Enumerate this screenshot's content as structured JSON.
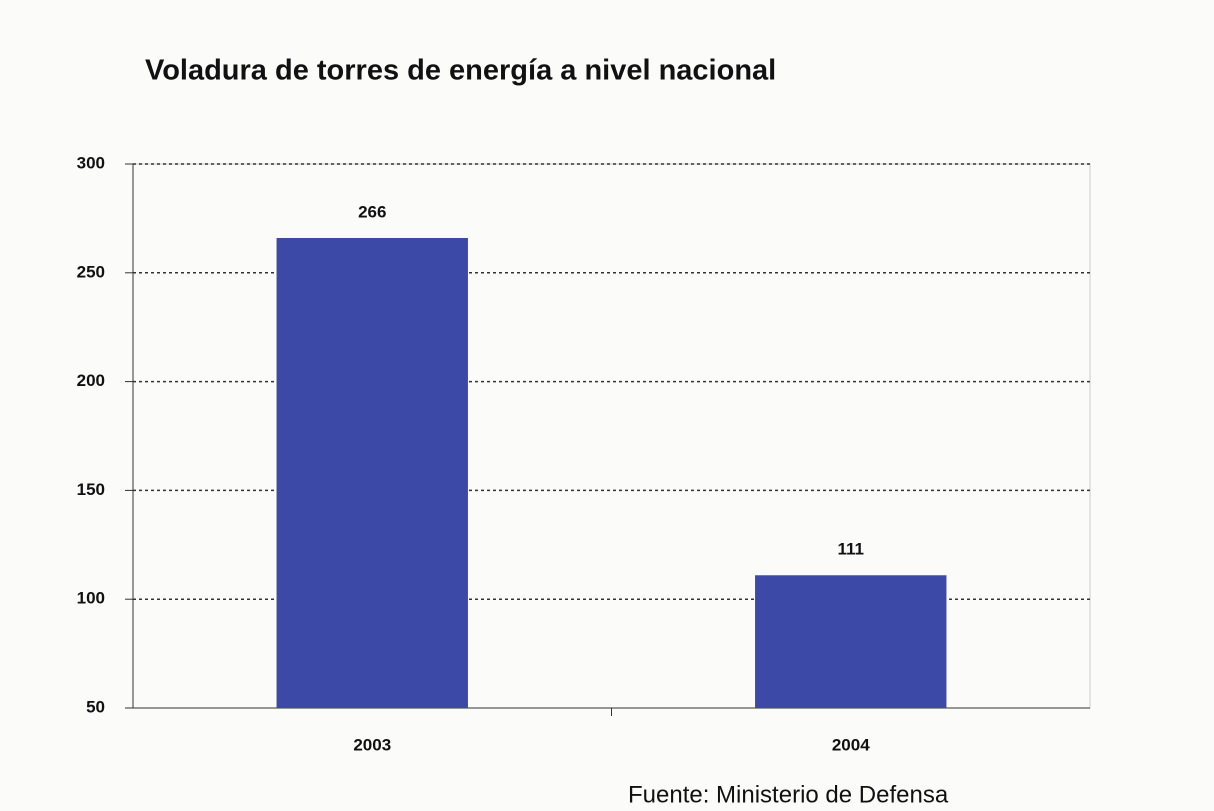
{
  "chart_data": {
    "type": "bar",
    "title": "Voladura de torres de energía  a nivel nacional",
    "categories": [
      "2003",
      "2004"
    ],
    "values": [
      266,
      111
    ],
    "color": "#3d49a6",
    "ylim": [
      50,
      300
    ],
    "yticks": [
      50,
      100,
      150,
      200,
      250,
      300
    ],
    "grid": true,
    "source": "Fuente:  Ministerio de Defensa"
  }
}
